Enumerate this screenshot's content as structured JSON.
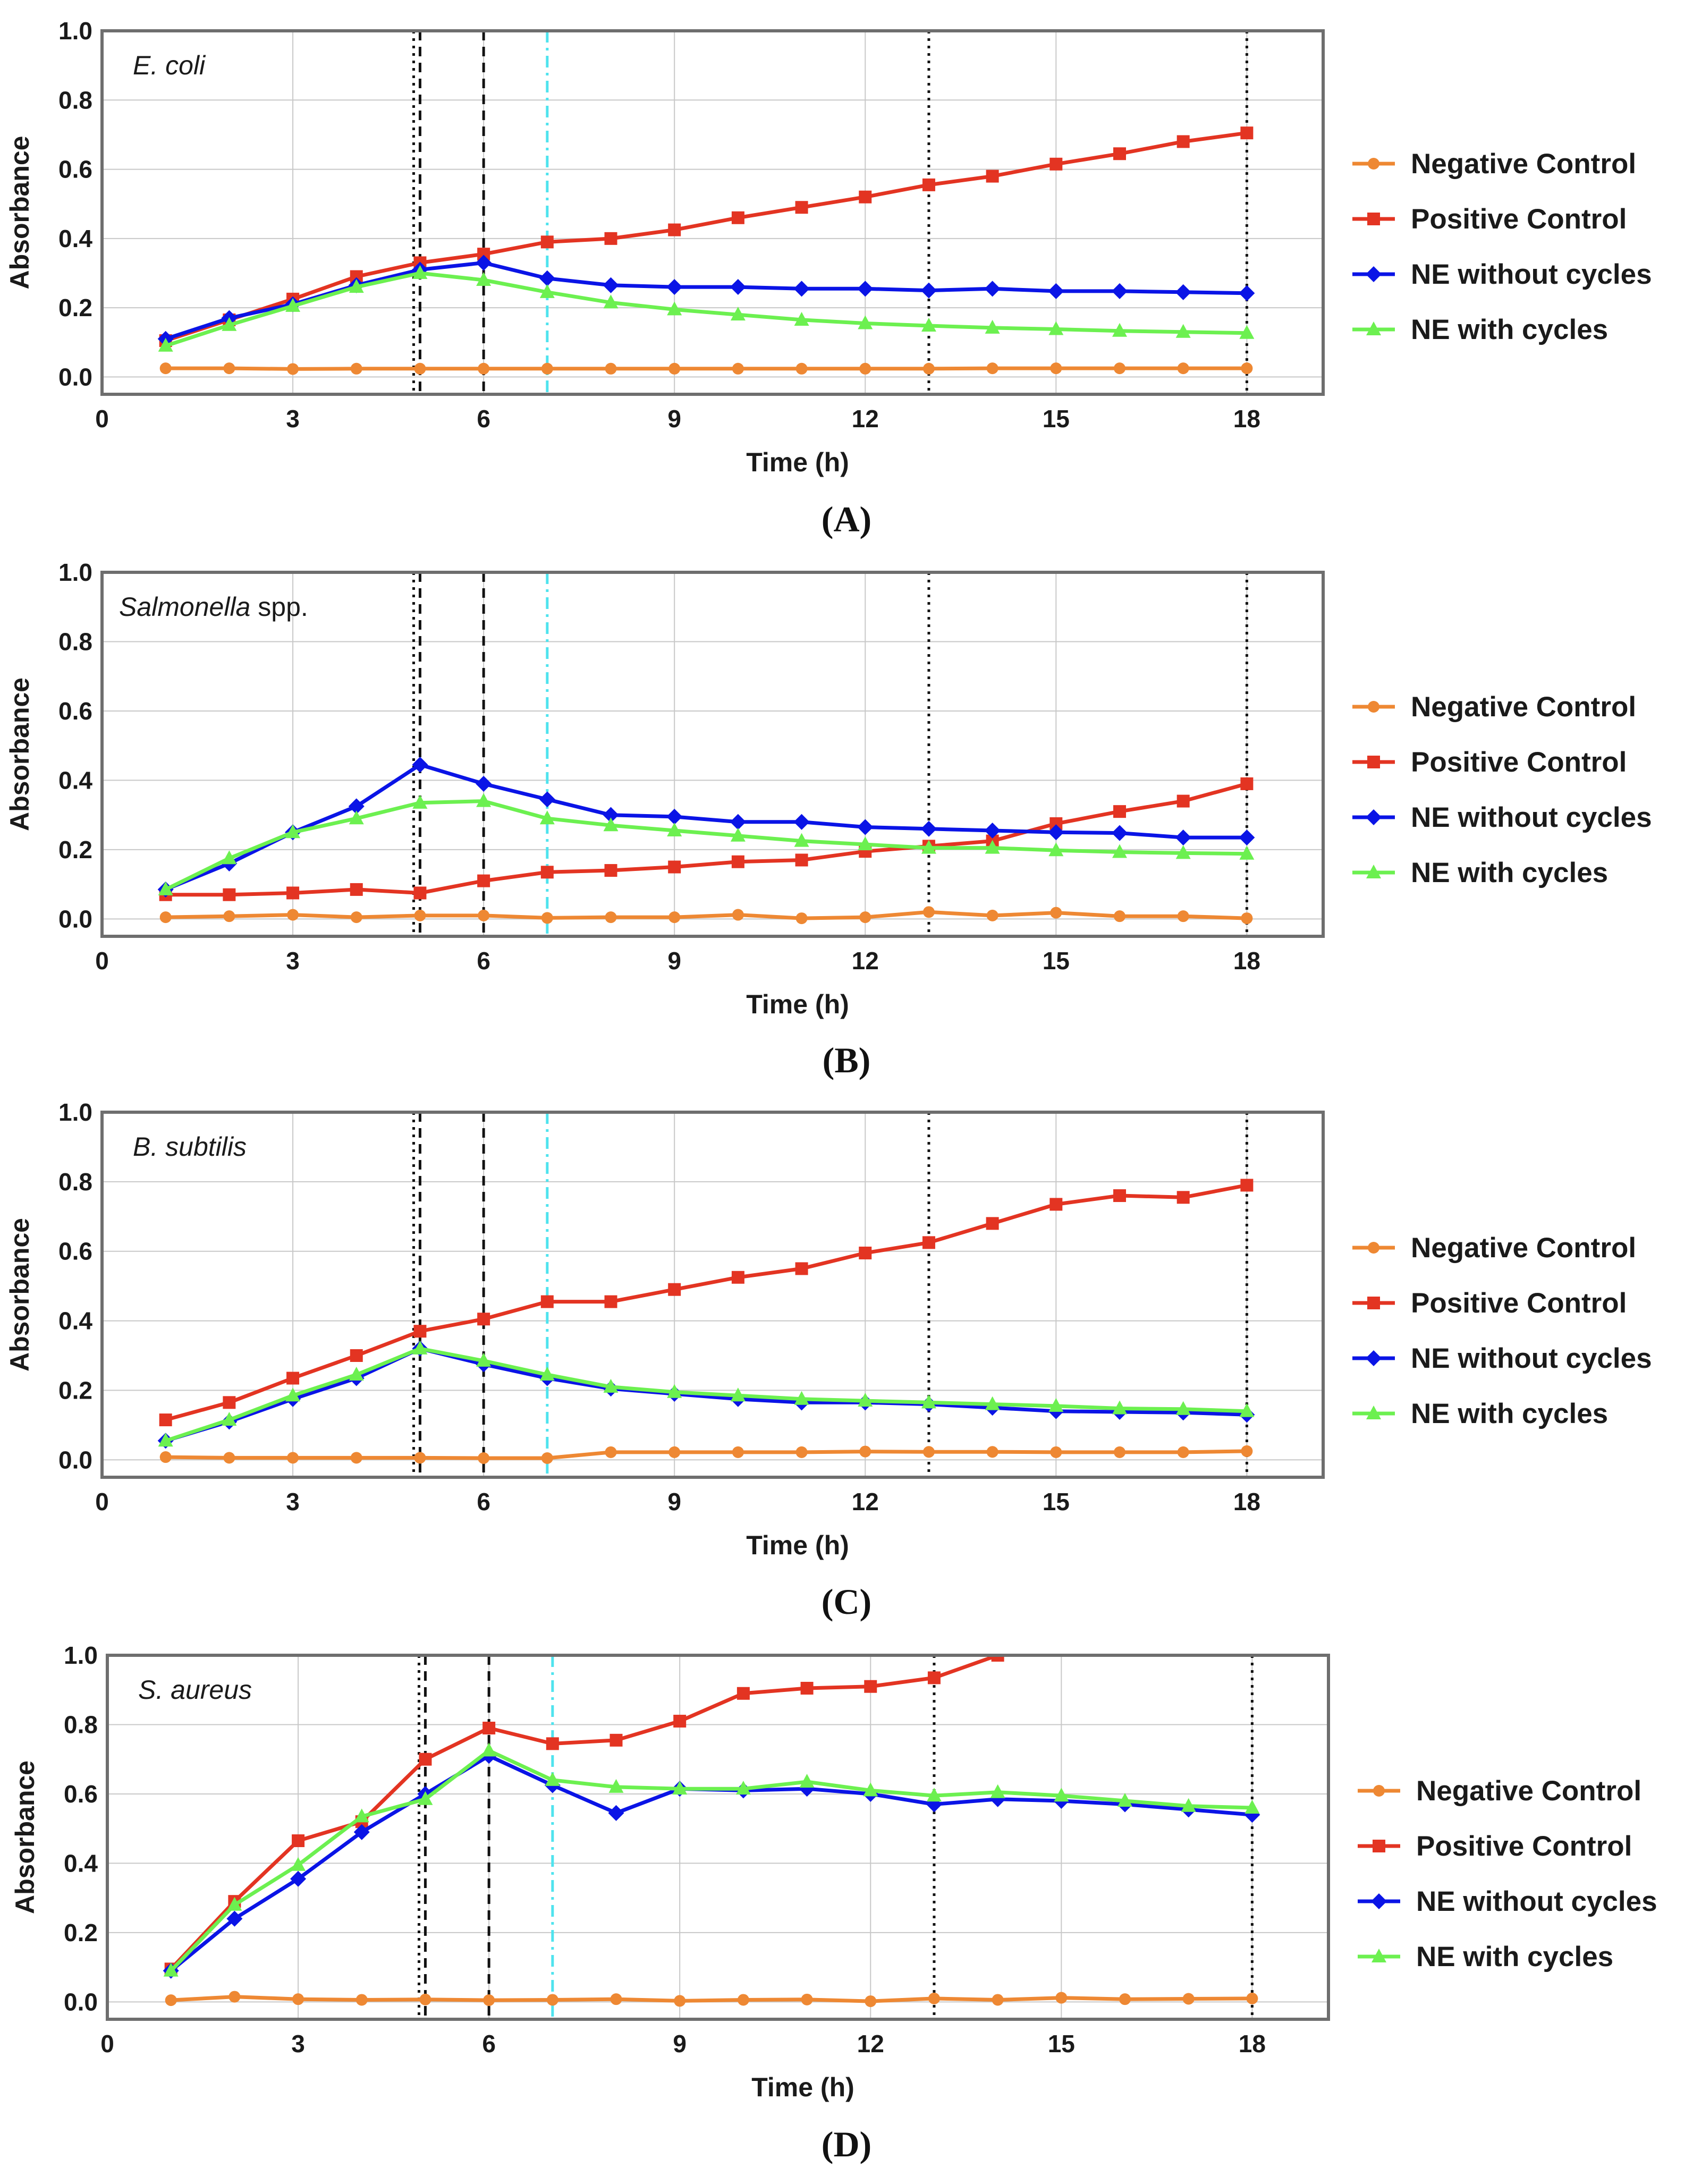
{
  "figure": {
    "x_ticks": [
      "0",
      "3",
      "6",
      "9",
      "12",
      "15",
      "18"
    ],
    "y_ticks": [
      "0.0",
      "0.2",
      "0.4",
      "0.6",
      "0.8",
      "1.0"
    ]
  },
  "legend": {
    "items": [
      "Negative Control",
      "Positive Control",
      "NE without cycles",
      "NE with cycles"
    ],
    "colors": [
      "#ee8833",
      "#e33422",
      "#0a14e6",
      "#6cf050"
    ],
    "markers": [
      "circle",
      "square",
      "diamond",
      "triangle"
    ]
  },
  "chart_data": [
    {
      "type": "line",
      "panel_label": "(A)",
      "organism": "E. coli",
      "organism_suffix": "",
      "xlabel": "Time (h)",
      "ylabel": "Absorbance",
      "xlim": [
        0,
        19.2
      ],
      "ylim": [
        -0.05,
        1.0
      ],
      "xticks": [
        0,
        3,
        6,
        9,
        12,
        15,
        18
      ],
      "yticks": [
        0.0,
        0.2,
        0.4,
        0.6,
        0.8,
        1.0
      ],
      "grid": true,
      "legend_position": "right",
      "vertical_markers": [
        {
          "x": 4.9,
          "style": "dotted"
        },
        {
          "x": 5.0,
          "style": "dashed"
        },
        {
          "x": 6.0,
          "style": "dashed"
        },
        {
          "x": 7.0,
          "style": "dash-dot-cyan"
        },
        {
          "x": 13.0,
          "style": "dotted"
        },
        {
          "x": 18.0,
          "style": "dotted"
        }
      ],
      "x": [
        1,
        2,
        3,
        4,
        5,
        6,
        7,
        8,
        9,
        10,
        11,
        12,
        13,
        14,
        15,
        16,
        17,
        18
      ],
      "series": [
        {
          "name": "Negative Control",
          "values": [
            0.025,
            0.025,
            0.023,
            0.024,
            0.024,
            0.024,
            0.024,
            0.024,
            0.024,
            0.024,
            0.024,
            0.024,
            0.024,
            0.025,
            0.025,
            0.025,
            0.025,
            0.025
          ]
        },
        {
          "name": "Positive Control",
          "values": [
            0.105,
            0.165,
            0.225,
            0.29,
            0.33,
            0.355,
            0.39,
            0.4,
            0.425,
            0.46,
            0.49,
            0.52,
            0.555,
            0.58,
            0.615,
            0.645,
            0.68,
            0.705
          ]
        },
        {
          "name": "NE without cycles",
          "values": [
            0.11,
            0.17,
            0.21,
            0.265,
            0.31,
            0.33,
            0.285,
            0.265,
            0.26,
            0.26,
            0.255,
            0.255,
            0.25,
            0.255,
            0.248,
            0.248,
            0.245,
            0.242
          ]
        },
        {
          "name": "NE with cycles",
          "values": [
            0.09,
            0.15,
            0.205,
            0.26,
            0.3,
            0.28,
            0.245,
            0.215,
            0.195,
            0.18,
            0.165,
            0.155,
            0.148,
            0.142,
            0.138,
            0.133,
            0.13,
            0.127
          ]
        }
      ]
    },
    {
      "type": "line",
      "panel_label": "(B)",
      "organism": "Salmonella",
      "organism_suffix": " spp.",
      "xlabel": "Time (h)",
      "ylabel": "Absorbance",
      "xlim": [
        0,
        19.2
      ],
      "ylim": [
        -0.05,
        1.0
      ],
      "xticks": [
        0,
        3,
        6,
        9,
        12,
        15,
        18
      ],
      "yticks": [
        0.0,
        0.2,
        0.4,
        0.6,
        0.8,
        1.0
      ],
      "grid": true,
      "legend_position": "right",
      "vertical_markers": [
        {
          "x": 4.9,
          "style": "dotted"
        },
        {
          "x": 5.0,
          "style": "dashed"
        },
        {
          "x": 6.0,
          "style": "dashed"
        },
        {
          "x": 7.0,
          "style": "dash-dot-cyan"
        },
        {
          "x": 13.0,
          "style": "dotted"
        },
        {
          "x": 18.0,
          "style": "dotted"
        }
      ],
      "x": [
        1,
        2,
        3,
        4,
        5,
        6,
        7,
        8,
        9,
        10,
        11,
        12,
        13,
        14,
        15,
        16,
        17,
        18
      ],
      "series": [
        {
          "name": "Negative Control",
          "values": [
            0.005,
            0.008,
            0.012,
            0.005,
            0.01,
            0.01,
            0.003,
            0.005,
            0.005,
            0.012,
            0.002,
            0.005,
            0.02,
            0.01,
            0.018,
            0.008,
            0.008,
            0.002
          ]
        },
        {
          "name": "Positive Control",
          "values": [
            0.07,
            0.07,
            0.075,
            0.085,
            0.075,
            0.11,
            0.135,
            0.14,
            0.15,
            0.165,
            0.17,
            0.195,
            0.21,
            0.225,
            0.275,
            0.31,
            0.34,
            0.39
          ]
        },
        {
          "name": "NE without cycles",
          "values": [
            0.085,
            0.16,
            0.25,
            0.325,
            0.445,
            0.39,
            0.345,
            0.3,
            0.295,
            0.28,
            0.28,
            0.265,
            0.26,
            0.255,
            0.25,
            0.248,
            0.235,
            0.235
          ]
        },
        {
          "name": "NE with cycles",
          "values": [
            0.085,
            0.175,
            0.25,
            0.29,
            0.335,
            0.34,
            0.29,
            0.27,
            0.255,
            0.24,
            0.225,
            0.215,
            0.205,
            0.205,
            0.198,
            0.193,
            0.19,
            0.188
          ]
        }
      ]
    },
    {
      "type": "line",
      "panel_label": "(C)",
      "organism": "B. subtilis",
      "organism_suffix": "",
      "xlabel": "Time (h)",
      "ylabel": "Absorbance",
      "xlim": [
        0,
        19.2
      ],
      "ylim": [
        -0.05,
        1.0
      ],
      "xticks": [
        0,
        3,
        6,
        9,
        12,
        15,
        18
      ],
      "yticks": [
        0.0,
        0.2,
        0.4,
        0.6,
        0.8,
        1.0
      ],
      "grid": true,
      "legend_position": "right",
      "vertical_markers": [
        {
          "x": 4.9,
          "style": "dotted"
        },
        {
          "x": 5.0,
          "style": "dashed"
        },
        {
          "x": 6.0,
          "style": "dashed"
        },
        {
          "x": 7.0,
          "style": "dash-dot-cyan"
        },
        {
          "x": 13.0,
          "style": "dotted"
        },
        {
          "x": 18.0,
          "style": "dotted"
        }
      ],
      "x": [
        1,
        2,
        3,
        4,
        5,
        6,
        7,
        8,
        9,
        10,
        11,
        12,
        13,
        14,
        15,
        16,
        17,
        18
      ],
      "series": [
        {
          "name": "Negative Control",
          "values": [
            0.008,
            0.006,
            0.006,
            0.006,
            0.006,
            0.005,
            0.005,
            0.022,
            0.022,
            0.022,
            0.022,
            0.024,
            0.023,
            0.023,
            0.022,
            0.022,
            0.022,
            0.025
          ]
        },
        {
          "name": "Positive Control",
          "values": [
            0.115,
            0.165,
            0.235,
            0.3,
            0.37,
            0.405,
            0.455,
            0.455,
            0.49,
            0.525,
            0.55,
            0.595,
            0.625,
            0.68,
            0.735,
            0.76,
            0.755,
            0.79
          ]
        },
        {
          "name": "NE without cycles",
          "values": [
            0.055,
            0.11,
            0.175,
            0.235,
            0.32,
            0.275,
            0.235,
            0.205,
            0.19,
            0.175,
            0.165,
            0.165,
            0.16,
            0.15,
            0.14,
            0.138,
            0.136,
            0.13
          ]
        },
        {
          "name": "NE with cycles",
          "values": [
            0.055,
            0.115,
            0.185,
            0.245,
            0.32,
            0.285,
            0.245,
            0.21,
            0.195,
            0.185,
            0.175,
            0.17,
            0.165,
            0.16,
            0.155,
            0.148,
            0.146,
            0.14
          ]
        }
      ]
    },
    {
      "type": "line",
      "panel_label": "(D)",
      "organism": "S. aureus",
      "organism_suffix": "",
      "xlabel": "Time (h)",
      "ylabel": "Absorbance",
      "xlim": [
        0,
        19.2
      ],
      "ylim": [
        -0.05,
        1.0
      ],
      "xticks": [
        0,
        3,
        6,
        9,
        12,
        15,
        18
      ],
      "yticks": [
        0.0,
        0.2,
        0.4,
        0.6,
        0.8,
        1.0
      ],
      "grid": true,
      "legend_position": "right",
      "vertical_markers": [
        {
          "x": 4.9,
          "style": "dotted"
        },
        {
          "x": 5.0,
          "style": "dashed"
        },
        {
          "x": 6.0,
          "style": "dashed"
        },
        {
          "x": 7.0,
          "style": "dash-dot-cyan"
        },
        {
          "x": 13.0,
          "style": "dotted"
        },
        {
          "x": 18.0,
          "style": "dotted"
        }
      ],
      "x": [
        1,
        2,
        3,
        4,
        5,
        6,
        7,
        8,
        9,
        10,
        11,
        12,
        13,
        14,
        15,
        16,
        17,
        18
      ],
      "series": [
        {
          "name": "Negative Control",
          "values": [
            0.005,
            0.015,
            0.008,
            0.006,
            0.007,
            0.005,
            0.006,
            0.008,
            0.003,
            0.006,
            0.007,
            0.002,
            0.01,
            0.006,
            0.012,
            0.008,
            0.009,
            0.01
          ]
        },
        {
          "name": "Positive Control",
          "values": [
            0.095,
            0.29,
            0.465,
            0.52,
            0.7,
            0.79,
            0.745,
            0.755,
            0.81,
            0.89,
            0.905,
            0.91,
            0.935,
            1.0,
            null,
            null,
            null,
            null
          ]
        },
        {
          "name": "NE without cycles",
          "values": [
            0.09,
            0.24,
            0.355,
            0.49,
            0.6,
            0.71,
            0.625,
            0.545,
            0.615,
            0.61,
            0.615,
            0.6,
            0.57,
            0.585,
            0.58,
            0.57,
            0.555,
            0.54
          ]
        },
        {
          "name": "NE with cycles",
          "values": [
            0.09,
            0.28,
            0.395,
            0.535,
            0.585,
            0.725,
            0.64,
            0.62,
            0.615,
            0.615,
            0.635,
            0.61,
            0.595,
            0.605,
            0.595,
            0.58,
            0.565,
            0.56
          ]
        }
      ]
    }
  ]
}
